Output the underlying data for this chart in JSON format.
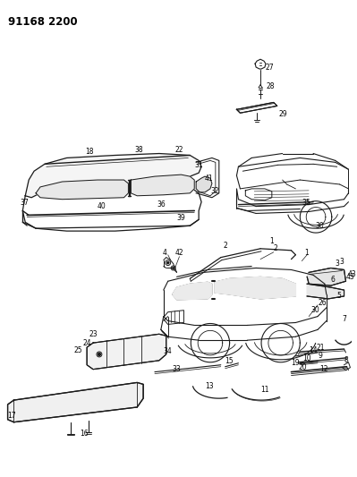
{
  "title": "91168 2200",
  "bg_color": "#ffffff",
  "line_color": "#1a1a1a",
  "text_color": "#000000",
  "fig_width": 3.99,
  "fig_height": 5.33,
  "dpi": 100
}
